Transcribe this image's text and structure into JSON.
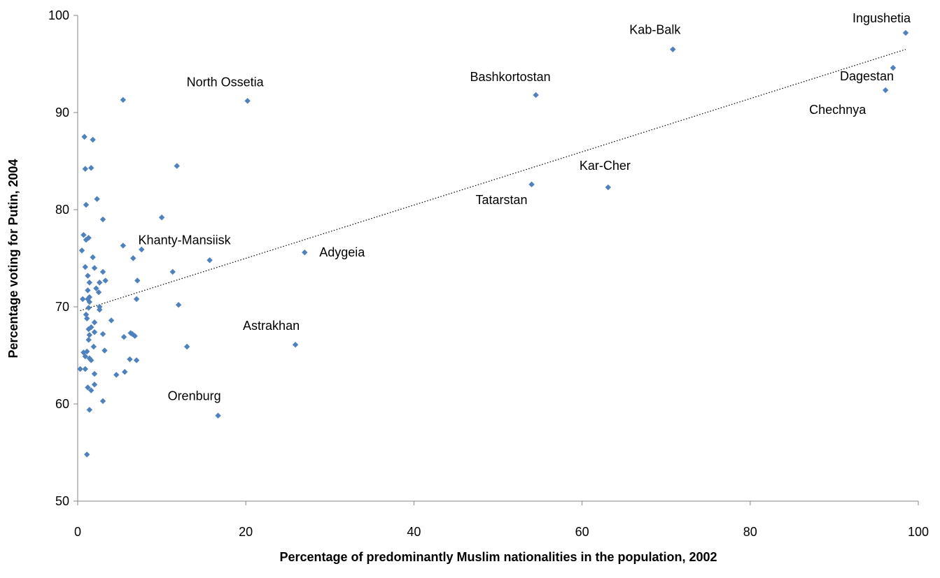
{
  "chart_data": {
    "type": "scatter",
    "title": "",
    "xlabel": "Percentage of predominantly Muslim nationalities in the population, 2002",
    "ylabel": "Percentage voting for Putin, 2004",
    "xlim": [
      0,
      100
    ],
    "ylim": [
      50,
      100
    ],
    "xticks": [
      0,
      20,
      40,
      60,
      80,
      100
    ],
    "yticks": [
      50,
      60,
      70,
      80,
      90,
      100
    ],
    "grid": false,
    "marker": "diamond",
    "colors": {
      "points": "#4F81BD",
      "trendline": "#000000"
    },
    "trendline": {
      "style": "dotted",
      "x": [
        0.3,
        98.5
      ],
      "y": [
        69.6,
        96.5
      ]
    },
    "points": [
      {
        "x": 98.5,
        "y": 98.2
      },
      {
        "x": 70.8,
        "y": 96.5
      },
      {
        "x": 97.0,
        "y": 94.6
      },
      {
        "x": 96.1,
        "y": 92.3
      },
      {
        "x": 54.5,
        "y": 91.8
      },
      {
        "x": 20.2,
        "y": 91.2
      },
      {
        "x": 5.4,
        "y": 91.3
      },
      {
        "x": 0.8,
        "y": 87.5
      },
      {
        "x": 1.8,
        "y": 87.2
      },
      {
        "x": 11.8,
        "y": 84.5
      },
      {
        "x": 0.9,
        "y": 84.2
      },
      {
        "x": 1.6,
        "y": 84.3
      },
      {
        "x": 54.0,
        "y": 82.6
      },
      {
        "x": 63.1,
        "y": 82.3
      },
      {
        "x": 2.3,
        "y": 81.1
      },
      {
        "x": 1.0,
        "y": 80.5
      },
      {
        "x": 10.0,
        "y": 79.2
      },
      {
        "x": 3.0,
        "y": 79.0
      },
      {
        "x": 0.7,
        "y": 77.4
      },
      {
        "x": 1.3,
        "y": 77.1
      },
      {
        "x": 1.0,
        "y": 76.9
      },
      {
        "x": 5.4,
        "y": 76.3
      },
      {
        "x": 7.6,
        "y": 75.9
      },
      {
        "x": 0.5,
        "y": 75.8
      },
      {
        "x": 27.0,
        "y": 75.6
      },
      {
        "x": 1.8,
        "y": 75.1
      },
      {
        "x": 6.6,
        "y": 75.0
      },
      {
        "x": 15.7,
        "y": 74.8
      },
      {
        "x": 0.9,
        "y": 74.1
      },
      {
        "x": 2.0,
        "y": 74.0
      },
      {
        "x": 11.3,
        "y": 73.6
      },
      {
        "x": 3.0,
        "y": 73.6
      },
      {
        "x": 1.2,
        "y": 73.2
      },
      {
        "x": 7.1,
        "y": 72.7
      },
      {
        "x": 3.3,
        "y": 72.7
      },
      {
        "x": 2.6,
        "y": 72.5
      },
      {
        "x": 1.4,
        "y": 72.5
      },
      {
        "x": 2.2,
        "y": 71.9
      },
      {
        "x": 1.2,
        "y": 71.7
      },
      {
        "x": 2.5,
        "y": 71.5
      },
      {
        "x": 1.4,
        "y": 71.0
      },
      {
        "x": 1.2,
        "y": 70.8
      },
      {
        "x": 0.6,
        "y": 70.8
      },
      {
        "x": 7.0,
        "y": 70.8
      },
      {
        "x": 1.4,
        "y": 70.5
      },
      {
        "x": 12.0,
        "y": 70.2
      },
      {
        "x": 2.6,
        "y": 70.0
      },
      {
        "x": 1.3,
        "y": 69.9
      },
      {
        "x": 2.6,
        "y": 69.7
      },
      {
        "x": 1.0,
        "y": 69.2
      },
      {
        "x": 1.1,
        "y": 68.8
      },
      {
        "x": 4.0,
        "y": 68.6
      },
      {
        "x": 2.0,
        "y": 68.4
      },
      {
        "x": 1.6,
        "y": 67.9
      },
      {
        "x": 1.3,
        "y": 67.7
      },
      {
        "x": 2.0,
        "y": 67.4
      },
      {
        "x": 6.3,
        "y": 67.3
      },
      {
        "x": 6.5,
        "y": 67.2
      },
      {
        "x": 3.0,
        "y": 67.2
      },
      {
        "x": 1.4,
        "y": 67.1
      },
      {
        "x": 6.8,
        "y": 67.0
      },
      {
        "x": 5.5,
        "y": 66.9
      },
      {
        "x": 1.3,
        "y": 66.6
      },
      {
        "x": 25.9,
        "y": 66.1
      },
      {
        "x": 1.9,
        "y": 65.9
      },
      {
        "x": 13.0,
        "y": 65.9
      },
      {
        "x": 3.2,
        "y": 65.5
      },
      {
        "x": 1.1,
        "y": 65.4
      },
      {
        "x": 0.7,
        "y": 65.3
      },
      {
        "x": 0.9,
        "y": 64.9
      },
      {
        "x": 1.4,
        "y": 64.7
      },
      {
        "x": 6.2,
        "y": 64.6
      },
      {
        "x": 7.0,
        "y": 64.5
      },
      {
        "x": 1.6,
        "y": 64.5
      },
      {
        "x": 0.3,
        "y": 63.6
      },
      {
        "x": 0.9,
        "y": 63.6
      },
      {
        "x": 5.6,
        "y": 63.3
      },
      {
        "x": 2.0,
        "y": 63.1
      },
      {
        "x": 4.6,
        "y": 63.0
      },
      {
        "x": 2.0,
        "y": 62.0
      },
      {
        "x": 1.2,
        "y": 61.7
      },
      {
        "x": 1.6,
        "y": 61.4
      },
      {
        "x": 3.0,
        "y": 60.3
      },
      {
        "x": 1.4,
        "y": 59.4
      },
      {
        "x": 16.7,
        "y": 58.8
      },
      {
        "x": 1.1,
        "y": 54.8
      }
    ],
    "annotations": [
      {
        "text": "Ingushetia",
        "x": 98.5,
        "y": 98.2
      },
      {
        "text": "Kab-Balk",
        "x": 70.8,
        "y": 96.5
      },
      {
        "text": "Dagestan",
        "x": 97.0,
        "y": 94.6
      },
      {
        "text": "Chechnya",
        "x": 96.1,
        "y": 92.3
      },
      {
        "text": "Bashkortostan",
        "x": 54.5,
        "y": 91.8
      },
      {
        "text": "North Ossetia",
        "x": 20.2,
        "y": 91.2
      },
      {
        "text": "Kar-Cher",
        "x": 63.1,
        "y": 82.3
      },
      {
        "text": "Tatarstan",
        "x": 54.0,
        "y": 82.6
      },
      {
        "text": "Khanty-Mansiisk",
        "x": 15.7,
        "y": 74.8
      },
      {
        "text": "Adygeia",
        "x": 27.0,
        "y": 75.6
      },
      {
        "text": "Astrakhan",
        "x": 25.9,
        "y": 66.1
      },
      {
        "text": "Orenburg",
        "x": 16.7,
        "y": 58.8
      }
    ]
  }
}
